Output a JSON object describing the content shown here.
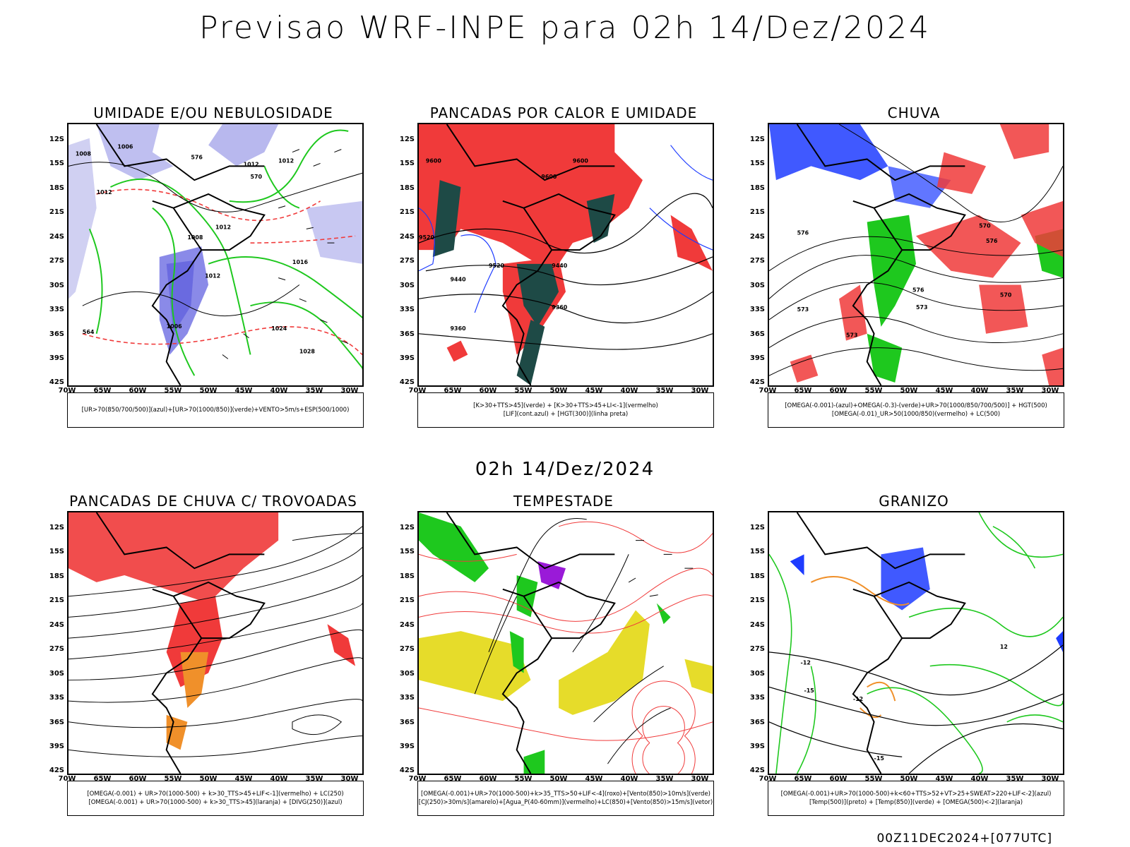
{
  "header": {
    "title": "Previsao WRF-INPE  para 02h 14/Dez/2024",
    "mid_time": "02h 14/Dez/2024",
    "run_label": "00Z11DEC2024+[077UTC]"
  },
  "axes": {
    "lat_labels": [
      "12S",
      "15S",
      "18S",
      "21S",
      "24S",
      "27S",
      "30S",
      "33S",
      "36S",
      "39S",
      "42S"
    ],
    "lon_labels": [
      "70W",
      "65W",
      "60W",
      "55W",
      "50W",
      "45W",
      "40W",
      "35W",
      "30W"
    ]
  },
  "panels": [
    {
      "title": "UMIDADE E/OU NEBULOSIDADE",
      "legend": [
        "[UR>70(850/700/500)](azul)+[UR>70(1000/850)](verde)+VENTO>5m/s+ESP(500/1000)"
      ]
    },
    {
      "title": "PANCADAS POR CALOR E UMIDADE",
      "legend": [
        "[K>30+TTS>45](verde)  +  [K>30+TTS>45+LI<-1](vermelho)",
        "[LIF](cont.azul)  +  [HGT(300)](linha preta)"
      ]
    },
    {
      "title": "CHUVA",
      "legend": [
        "[OMEGA(-0.001)-(azul)+OMEGA(-0.3)-(verde)+UR>70(1000/850/700/500)]  +  HGT(500)",
        "[OMEGA(-0.01)_UR>50(1000/850)(vermelho)  +  LC(500)"
      ]
    },
    {
      "title": "PANCADAS DE CHUVA C/ TROVOADAS",
      "legend": [
        "[OMEGA(-0.001)  +  UR>70(1000-500)  +  k>30_TTS>45+LIF<-1](vermelho)  +  LC(250)",
        "[OMEGA(-0.001)  +  UR>70(1000-500)  +  k>30_TTS>45](laranja)  +  [DIVG(250)](azul)"
      ]
    },
    {
      "title": "TEMPESTADE",
      "legend": [
        "[OMEGA(-0.001)+UR>70(1000-500)+k>35_TTS>50+LIF<-4](roxo)+[Vento(850)>10m/s](verde)",
        "[CJ(250)>30m/s](amarelo)+[Agua_P(40-60mm)](vermelho)+LC(850)+[Vento(850)>15m/s](vetor)"
      ]
    },
    {
      "title": "GRANIZO",
      "legend": [
        "[OMEGA(-0.001)+UR>70(1000-500)+k<60+TTS>52+VT>25+SWEAT>220+LIF<-2](azul)",
        "[Temp(500)](preto)  +  [Temp(850)](verde)  +  [OMEGA(500)<-2](laranja)"
      ]
    }
  ],
  "contour_labels": {
    "p1": [
      "1008",
      "1006",
      "1012",
      "1012",
      "1012",
      "1008",
      "1012",
      "1016",
      "1012",
      "1024",
      "1028",
      "1006",
      "570",
      "576",
      "564"
    ],
    "p2": [
      "9600",
      "9600",
      "9600",
      "9520",
      "9520",
      "9440",
      "9440",
      "9360",
      "9360"
    ],
    "p3": [
      "576",
      "573",
      "576",
      "576",
      "570",
      "573",
      "570",
      "573"
    ],
    "p6": [
      "-12",
      "-15",
      "-12",
      "12",
      "-15"
    ]
  },
  "colors": {
    "red": "#f03a3a",
    "blue_light": "#b8b8ee",
    "blue": "#1e3cff",
    "green": "#1ec81e",
    "dark_teal": "#1e4a46",
    "orange": "#f0902a",
    "yellow": "#e6dc2a",
    "purple": "#9a1ad8"
  }
}
